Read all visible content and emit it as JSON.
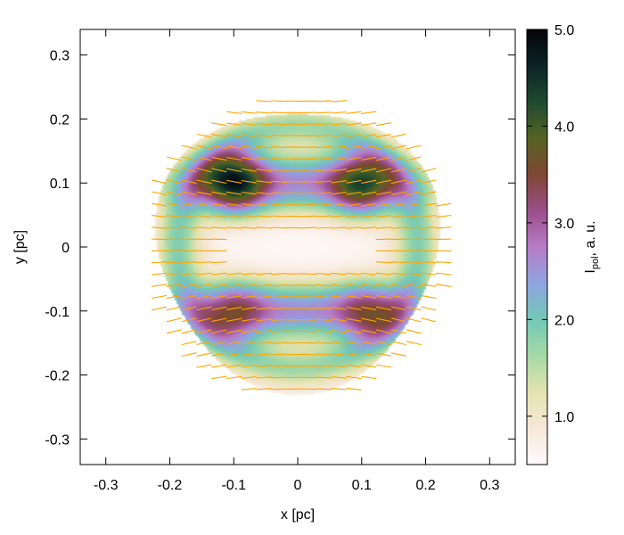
{
  "chart_data": {
    "type": "heatmap",
    "title": "",
    "xlabel": "x [pc]",
    "ylabel": "y [pc]",
    "xlim": [
      -0.34,
      0.34
    ],
    "ylim": [
      -0.34,
      0.34
    ],
    "x_ticks": [
      "-0.3",
      "-0.2",
      "-0.1",
      "0",
      "0.1",
      "0.2",
      "0.3"
    ],
    "x_tick_values": [
      -0.3,
      -0.2,
      -0.1,
      0,
      0.1,
      0.2,
      0.3
    ],
    "y_ticks": [
      "0.3",
      "0.2",
      "0.1",
      "0",
      "-0.1",
      "-0.2",
      "-0.3"
    ],
    "y_tick_values": [
      0.3,
      0.2,
      0.1,
      0,
      -0.1,
      -0.2,
      -0.3
    ],
    "colorbar": {
      "label_main": "I",
      "label_sub": "pol",
      "label_rest": ", a. u.",
      "range": [
        0.5,
        5.0
      ],
      "tick_labels": [
        "5.0",
        "4.0",
        "3.0",
        "2.0",
        "1.0"
      ],
      "tick_values": [
        5.0,
        4.0,
        3.0,
        2.0,
        1.0
      ],
      "palette": [
        "#fffafc",
        "#f7e8d8",
        "#e4e3b0",
        "#a5d9a6",
        "#72c8b6",
        "#8fa4e0",
        "#b77cc6",
        "#9b4e8b",
        "#7e4632",
        "#556324",
        "#1f4a30",
        "#0c2326",
        "#050308"
      ]
    },
    "disk": {
      "center": [
        0.0,
        0.0
      ],
      "radius": 0.22
    },
    "intensity_peaks": [
      {
        "x": -0.1,
        "y": 0.1,
        "value": 4.9
      },
      {
        "x": 0.1,
        "y": 0.095,
        "value": 4.4
      },
      {
        "x": -0.1,
        "y": -0.1,
        "value": 3.6
      },
      {
        "x": 0.11,
        "y": -0.1,
        "value": 3.6
      }
    ],
    "polarization_vectors": {
      "color": "#ffa500",
      "present": true
    }
  }
}
